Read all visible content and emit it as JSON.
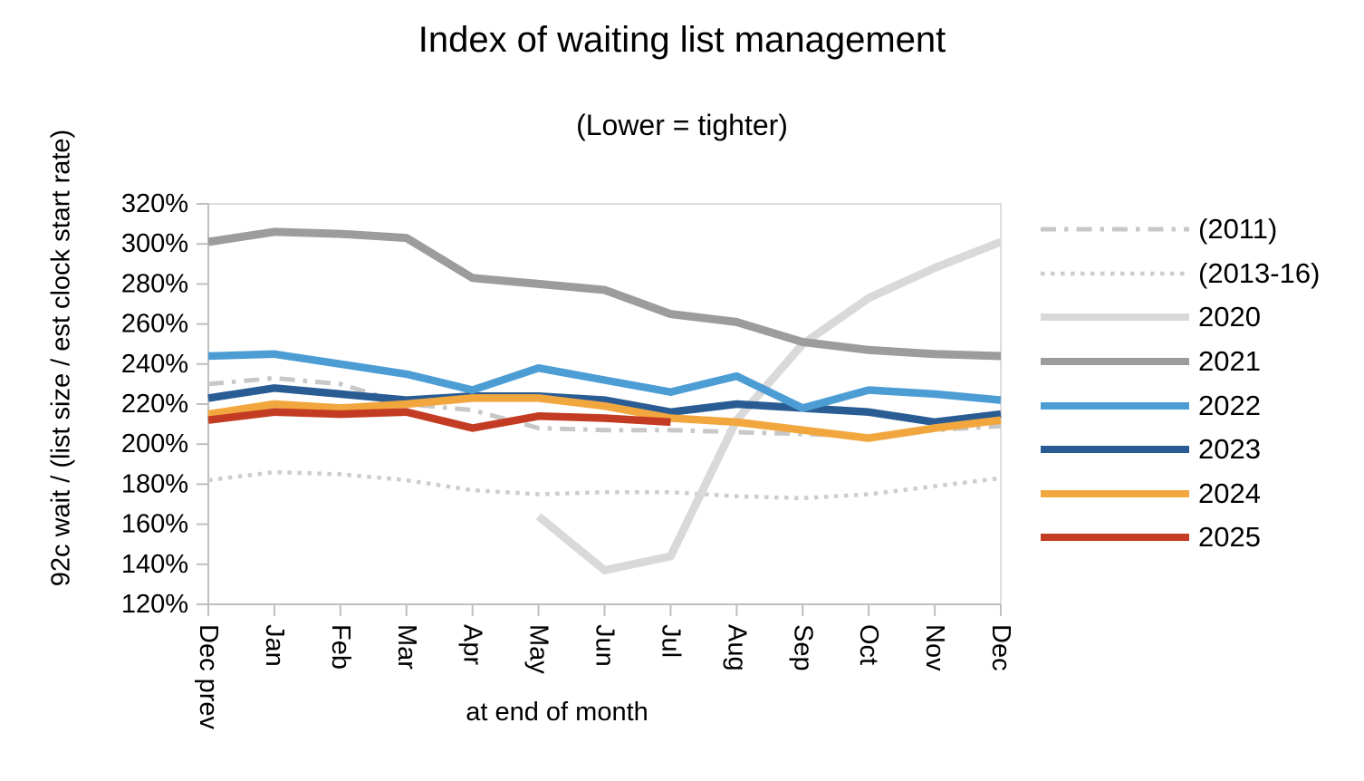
{
  "title": "Index of waiting list management",
  "subtitle": "(Lower = tighter)",
  "chart_data": {
    "type": "line",
    "title": "Index of waiting list management",
    "subtitle": "(Lower = tighter)",
    "xlabel": "at end of month",
    "ylabel": "92c wait / (list size / est clock start rate)",
    "categories": [
      "Dec prev",
      "Jan",
      "Feb",
      "Mar",
      "Apr",
      "May",
      "Jun",
      "Jul",
      "Aug",
      "Sep",
      "Oct",
      "Nov",
      "Dec"
    ],
    "ylim": [
      120,
      320
    ],
    "y_tick_step": 20,
    "y_tick_suffix": "%",
    "grid": false,
    "legend_position": "right",
    "axis_color": "#bfbfbf",
    "border_color": "#d2d2d2",
    "series": [
      {
        "name": "(2011)",
        "color": "#c8c8c8",
        "style": "dashdot",
        "width": 5,
        "values": [
          230,
          233,
          230,
          220,
          217,
          208,
          207,
          207,
          206,
          205,
          204,
          207,
          209
        ]
      },
      {
        "name": "(2013-16)",
        "color": "#cdcdcd",
        "style": "dotted",
        "width": 4.5,
        "values": [
          182,
          186,
          185,
          182,
          177,
          175,
          176,
          176,
          174,
          173,
          175,
          179,
          183
        ]
      },
      {
        "name": "2020",
        "color": "#d9d9d9",
        "style": "solid",
        "width": 9,
        "values": [
          null,
          null,
          null,
          null,
          null,
          164,
          137,
          144,
          212,
          250,
          273,
          288,
          301
        ]
      },
      {
        "name": "2021",
        "color": "#9c9c9c",
        "style": "solid",
        "width": 9,
        "values": [
          301,
          306,
          305,
          303,
          283,
          280,
          277,
          265,
          261,
          251,
          247,
          245,
          244
        ]
      },
      {
        "name": "2022",
        "color": "#4d9dd5",
        "style": "solid",
        "width": 8.5,
        "values": [
          244,
          245,
          240,
          235,
          227,
          238,
          232,
          226,
          234,
          218,
          227,
          225,
          222
        ]
      },
      {
        "name": "2023",
        "color": "#2a5c94",
        "style": "solid",
        "width": 8.5,
        "values": [
          223,
          228,
          225,
          222,
          224,
          224,
          222,
          216,
          220,
          218,
          216,
          211,
          215
        ]
      },
      {
        "name": "2024",
        "color": "#f2a73e",
        "style": "solid",
        "width": 8.5,
        "values": [
          215,
          220,
          218,
          220,
          223,
          223,
          219,
          213,
          211,
          207,
          203,
          208,
          212
        ]
      },
      {
        "name": "2025",
        "color": "#c33b22",
        "style": "solid",
        "width": 8.5,
        "values": [
          212,
          216,
          215,
          216,
          208,
          214,
          213,
          211,
          null,
          null,
          null,
          null,
          null
        ]
      }
    ]
  }
}
